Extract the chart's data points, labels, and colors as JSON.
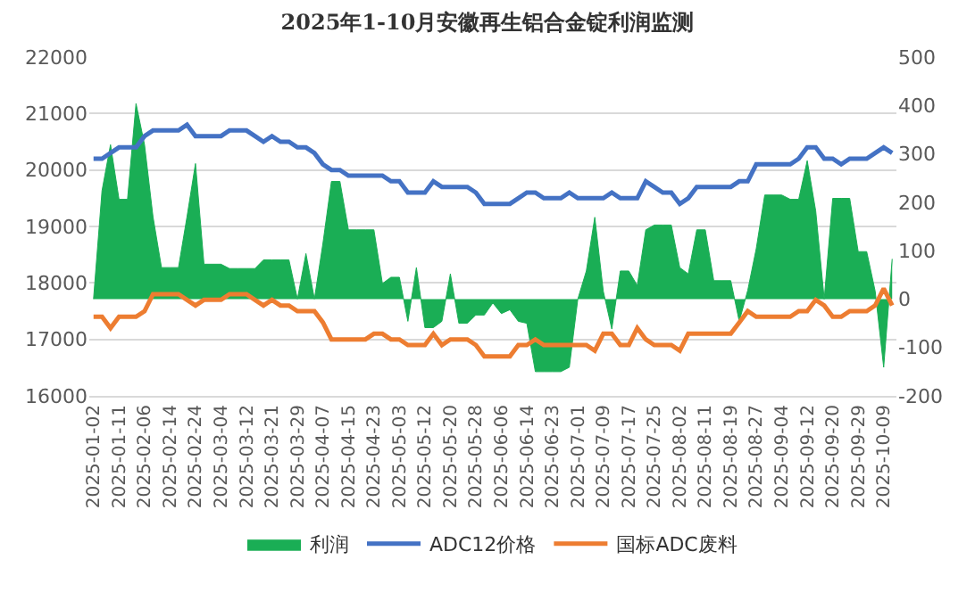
{
  "chart_data": {
    "type": "line",
    "title": "2025年1-10月安徽再生铝合金锭利润监测",
    "categories": [
      "2025-01-02",
      null,
      null,
      "2025-01-11",
      null,
      null,
      "2025-02-06",
      null,
      null,
      "2025-02-14",
      null,
      null,
      "2025-02-24",
      null,
      null,
      "2025-03-04",
      null,
      null,
      "2025-03-12",
      null,
      null,
      "2025-03-21",
      null,
      null,
      "2025-03-29",
      null,
      null,
      "2025-04-07",
      null,
      null,
      "2025-04-15",
      null,
      null,
      "2025-04-23",
      null,
      null,
      "2025-05-03",
      null,
      null,
      "2025-05-12",
      null,
      null,
      "2025-05-20",
      null,
      null,
      "2025-05-28",
      null,
      null,
      "2025-06-06",
      null,
      null,
      "2025-06-14",
      null,
      null,
      "2025-06-23",
      null,
      null,
      "2025-07-01",
      null,
      null,
      "2025-07-09",
      null,
      null,
      "2025-07-17",
      null,
      null,
      "2025-07-25",
      null,
      null,
      "2025-08-02",
      null,
      null,
      "2025-08-11",
      null,
      null,
      "2025-08-19",
      null,
      null,
      "2025-08-27",
      null,
      null,
      "2025-09-04",
      null,
      null,
      "2025-09-12",
      null,
      null,
      "2025-09-20",
      null,
      null,
      "2025-09-29",
      null,
      null,
      "2025-10-09",
      null
    ],
    "series": [
      {
        "name": "利润",
        "type": "area",
        "axis": "y2",
        "color": "#1aae55",
        "values": [
          0,
          224,
          319,
          206,
          206,
          404,
          319,
          170,
          65,
          65,
          65,
          170,
          280,
          72,
          72,
          72,
          63,
          63,
          63,
          63,
          81,
          81,
          81,
          81,
          0,
          94,
          0,
          115,
          243,
          243,
          143,
          143,
          143,
          143,
          32,
          45,
          45,
          -46,
          65,
          -59,
          -59,
          -46,
          52,
          -50,
          -50,
          -33,
          -33,
          -8,
          -30,
          -22,
          -46,
          -50,
          -150,
          -150,
          -150,
          -150,
          -141,
          0,
          58,
          169,
          16,
          -62,
          58,
          58,
          28,
          143,
          153,
          153,
          153,
          65,
          52,
          143,
          143,
          38,
          38,
          38,
          -46,
          18,
          104,
          215,
          215,
          215,
          206,
          206,
          286,
          182,
          0,
          208,
          208,
          208,
          98,
          98,
          16,
          -141,
          83
        ]
      },
      {
        "name": "ADC12价格",
        "color": "#4472c4",
        "values": [
          20200,
          20200,
          20300,
          20400,
          20400,
          20400,
          20600,
          20700,
          20700,
          20700,
          20700,
          20800,
          20600,
          20600,
          20600,
          20600,
          20700,
          20700,
          20700,
          20600,
          20500,
          20600,
          20500,
          20500,
          20400,
          20400,
          20300,
          20100,
          20000,
          20000,
          19900,
          19900,
          19900,
          19900,
          19900,
          19800,
          19800,
          19600,
          19600,
          19600,
          19800,
          19700,
          19700,
          19700,
          19700,
          19600,
          19400,
          19400,
          19400,
          19400,
          19500,
          19600,
          19600,
          19500,
          19500,
          19500,
          19600,
          19500,
          19500,
          19500,
          19500,
          19600,
          19500,
          19500,
          19500,
          19800,
          19700,
          19600,
          19600,
          19400,
          19500,
          19700,
          19700,
          19700,
          19700,
          19700,
          19800,
          19800,
          20100,
          20100,
          20100,
          20100,
          20100,
          20200,
          20400,
          20400,
          20200,
          20200,
          20100,
          20200,
          20200,
          20200,
          20300,
          20400,
          20300
        ]
      },
      {
        "name": "国标ADC废料",
        "color": "#ed7d31",
        "values": [
          17400,
          17400,
          17200,
          17400,
          17400,
          17400,
          17500,
          17800,
          17800,
          17800,
          17800,
          17700,
          17600,
          17700,
          17700,
          17700,
          17800,
          17800,
          17800,
          17700,
          17600,
          17700,
          17600,
          17600,
          17500,
          17500,
          17500,
          17300,
          17000,
          17000,
          17000,
          17000,
          17000,
          17100,
          17100,
          17000,
          17000,
          16900,
          16900,
          16900,
          17100,
          16900,
          17000,
          17000,
          17000,
          16900,
          16700,
          16700,
          16700,
          16700,
          16900,
          16900,
          17000,
          16900,
          16900,
          16900,
          16900,
          16900,
          16900,
          16800,
          17100,
          17100,
          16900,
          16900,
          17200,
          17000,
          16900,
          16900,
          16900,
          16800,
          17100,
          17100,
          17100,
          17100,
          17100,
          17100,
          17300,
          17500,
          17400,
          17400,
          17400,
          17400,
          17400,
          17500,
          17500,
          17700,
          17600,
          17400,
          17400,
          17500,
          17500,
          17500,
          17600,
          17900,
          17600
        ]
      }
    ],
    "ylim": [
      16000,
      22000
    ],
    "yticks": [
      16000,
      17000,
      18000,
      19000,
      20000,
      21000,
      22000
    ],
    "y2lim": [
      -200,
      500
    ],
    "y2ticks": [
      -200,
      -100,
      0,
      100,
      200,
      300,
      400,
      500
    ],
    "grid": "y",
    "legend": "bottom",
    "marker": "none",
    "line_style": "solid"
  }
}
